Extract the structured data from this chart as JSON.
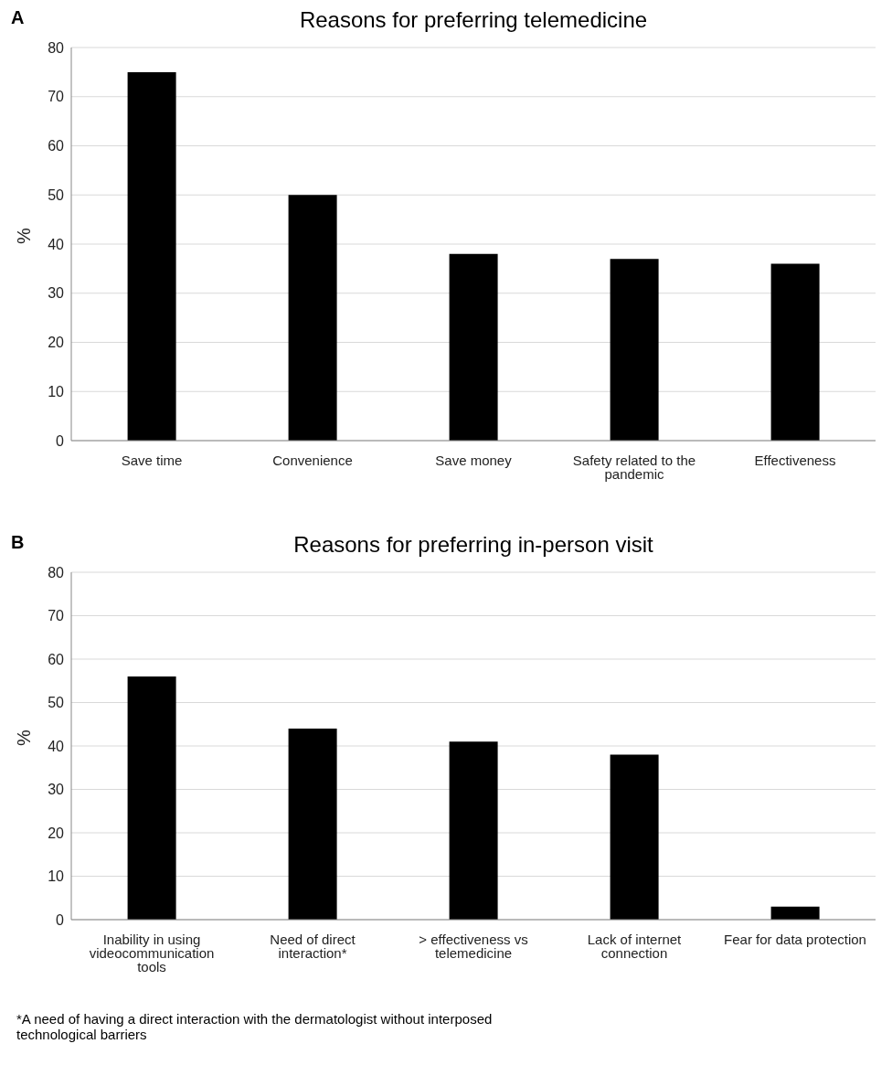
{
  "chart_data": [
    {
      "type": "bar",
      "title": "Reasons for preferring telemedicine",
      "ylabel": "%",
      "annotations": [
        "A"
      ],
      "categories": [
        "Save time",
        "Convenience",
        "Save money",
        "Safety related to the pandemic",
        "Effectiveness"
      ],
      "values": [
        75,
        50,
        38,
        37,
        36
      ],
      "color": "#000000",
      "ylim": [
        0,
        80
      ],
      "yticks": [
        0,
        10,
        20,
        30,
        40,
        50,
        60,
        70,
        80
      ],
      "grid": "y"
    },
    {
      "type": "bar",
      "title": "Reasons for preferring in-person visit",
      "ylabel": "%",
      "annotations": [
        "B",
        "*A need of having a direct interaction with the dermatologist without interposed technological barriers"
      ],
      "categories": [
        "Inability in using videocommunication tools",
        "Need of direct interaction*",
        "> effectiveness vs telemedicine",
        "Lack of internet connection",
        "Fear for data protection"
      ],
      "values": [
        56,
        44,
        41,
        38,
        3
      ],
      "color": "#000000",
      "ylim": [
        0,
        80
      ],
      "yticks": [
        0,
        10,
        20,
        30,
        40,
        50,
        60,
        70,
        80
      ],
      "grid": "y"
    }
  ]
}
